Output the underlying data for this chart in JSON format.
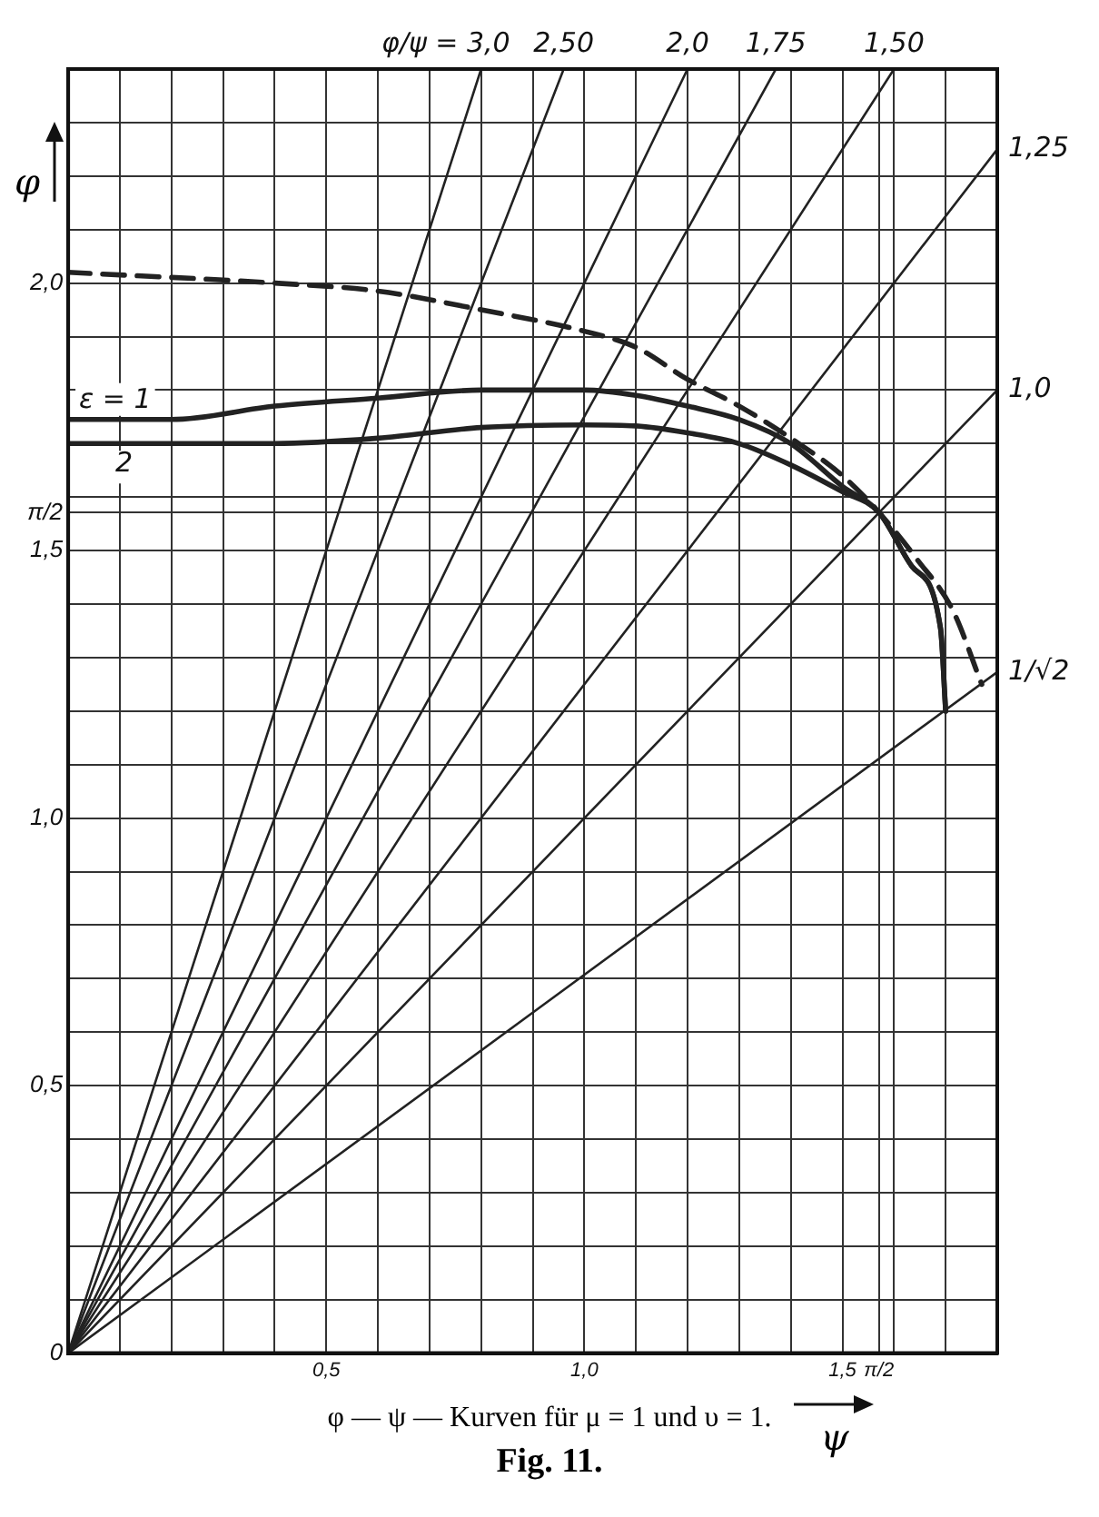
{
  "chart_data": {
    "type": "line",
    "xlabel": "ψ",
    "ylabel": "φ",
    "annotations": [
      "φ — ψ — Kurven für μ = 1 und υ = 1.",
      "Fig. 11."
    ],
    "xlim": [
      0,
      1.8
    ],
    "ylim": [
      0,
      2.4
    ],
    "xticks": [
      {
        "value": 0,
        "label": null
      },
      {
        "value": 0.1,
        "label": null
      },
      {
        "value": 0.2,
        "label": null
      },
      {
        "value": 0.3,
        "label": null
      },
      {
        "value": 0.4,
        "label": null
      },
      {
        "value": 0.5,
        "label": "0,5"
      },
      {
        "value": 0.6,
        "label": null
      },
      {
        "value": 0.7,
        "label": null
      },
      {
        "value": 0.8,
        "label": null
      },
      {
        "value": 0.9,
        "label": null
      },
      {
        "value": 1.0,
        "label": "1,0"
      },
      {
        "value": 1.1,
        "label": null
      },
      {
        "value": 1.2,
        "label": null
      },
      {
        "value": 1.3,
        "label": null
      },
      {
        "value": 1.4,
        "label": null
      },
      {
        "value": 1.5,
        "label": "1,5"
      },
      {
        "value": 1.5708,
        "label": "π/2"
      },
      {
        "value": 1.6,
        "label": null
      },
      {
        "value": 1.7,
        "label": null
      },
      {
        "value": 1.8,
        "label": null
      }
    ],
    "yticks": [
      0,
      {
        "value": 0.1,
        "label": null
      },
      {
        "value": 0.2,
        "label": null
      },
      {
        "value": 0.3,
        "label": null
      },
      {
        "value": 0.4,
        "label": null
      },
      {
        "value": 0.5,
        "label": "0,5"
      },
      {
        "value": 0.6,
        "label": null
      },
      {
        "value": 0.7,
        "label": null
      },
      {
        "value": 0.8,
        "label": null
      },
      {
        "value": 0.9,
        "label": null
      },
      {
        "value": 1.0,
        "label": "1,0"
      },
      {
        "value": 1.1,
        "label": null
      },
      {
        "value": 1.2,
        "label": null
      },
      {
        "value": 1.3,
        "label": null
      },
      {
        "value": 1.4,
        "label": null
      },
      {
        "value": 1.5,
        "label": "1,5"
      },
      {
        "value": 1.5708,
        "label": "π/2"
      },
      {
        "value": 1.6,
        "label": null
      },
      {
        "value": 1.7,
        "label": null
      },
      {
        "value": 1.8,
        "label": null
      },
      {
        "value": 1.9,
        "label": null
      },
      {
        "value": 2.0,
        "label": "2,0"
      },
      {
        "value": 2.1,
        "label": null
      },
      {
        "value": 2.2,
        "label": null
      },
      {
        "value": 2.3,
        "label": null
      },
      {
        "value": 2.4,
        "label": null
      }
    ],
    "grid": true,
    "legend": false,
    "marker": "none",
    "series": [
      {
        "name": "φ/ψ = 3,0",
        "color": "#222222",
        "x": [
          0,
          0.8
        ],
        "values": [
          0,
          2.4
        ]
      },
      {
        "name": "2,50",
        "color": "#222222",
        "x": [
          0,
          0.96
        ],
        "values": [
          0,
          2.4
        ]
      },
      {
        "name": "2,0",
        "color": "#222222",
        "x": [
          0,
          1.2
        ],
        "values": [
          0,
          2.4
        ]
      },
      {
        "name": "1,75",
        "color": "#222222",
        "x": [
          0,
          1.371
        ],
        "values": [
          0,
          2.4
        ]
      },
      {
        "name": "1,50",
        "color": "#222222",
        "x": [
          0,
          1.6
        ],
        "values": [
          0,
          2.4
        ]
      },
      {
        "name": "1,25",
        "color": "#222222",
        "x": [
          0,
          1.8
        ],
        "values": [
          0,
          2.25
        ]
      },
      {
        "name": "1,0",
        "color": "#222222",
        "x": [
          0,
          1.8
        ],
        "values": [
          0,
          1.8
        ]
      },
      {
        "name": "1/√2",
        "color": "#222222",
        "x": [
          0,
          1.8
        ],
        "values": [
          0,
          1.273
        ]
      },
      {
        "color": "#222222",
        "line_style": "dashed",
        "x": [
          0,
          0.4,
          0.6,
          0.8,
          1.0,
          1.1,
          1.2,
          1.3,
          1.4,
          1.5,
          1.571,
          1.645,
          1.713,
          1.77
        ],
        "values": [
          2.02,
          2.0,
          1.985,
          1.95,
          1.91,
          1.88,
          1.82,
          1.77,
          1.71,
          1.64,
          1.571,
          1.483,
          1.39,
          1.25
        ]
      },
      {
        "name": "ε = 1",
        "color": "#222222",
        "x": [
          0,
          0.2,
          0.4,
          0.6,
          0.8,
          1.0,
          1.1,
          1.2,
          1.3,
          1.4,
          1.5,
          1.571,
          1.635,
          1.69,
          1.7
        ],
        "values": [
          1.745,
          1.745,
          1.77,
          1.785,
          1.8,
          1.8,
          1.79,
          1.77,
          1.745,
          1.7,
          1.62,
          1.571,
          1.47,
          1.355,
          1.2
        ]
      },
      {
        "name": "2",
        "color": "#222222",
        "x": [
          0,
          0.2,
          0.4,
          0.6,
          0.8,
          1.0,
          1.1,
          1.2,
          1.3,
          1.4,
          1.5,
          1.571,
          1.635,
          1.69,
          1.7
        ],
        "values": [
          1.7,
          1.7,
          1.7,
          1.71,
          1.73,
          1.735,
          1.733,
          1.72,
          1.7,
          1.66,
          1.61,
          1.571,
          1.47,
          1.355,
          1.2
        ]
      }
    ]
  }
}
